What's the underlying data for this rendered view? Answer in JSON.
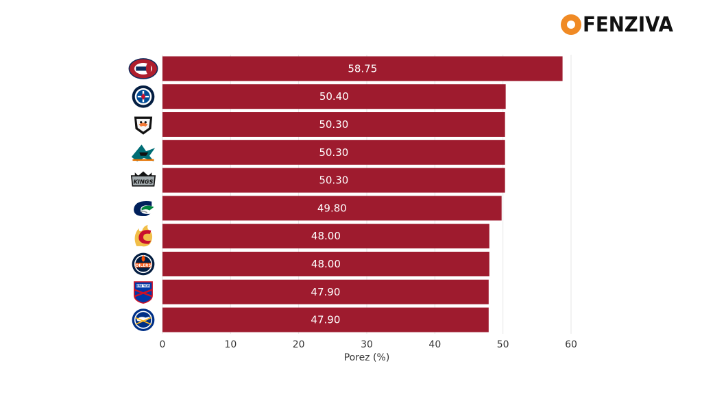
{
  "brand": {
    "text": "FENZIVA",
    "icon": "orange-ring-icon",
    "color": "#f08a24"
  },
  "chart_data": {
    "type": "bar",
    "orientation": "horizontal",
    "categories": [
      "montreal-canadiens-logo",
      "winnipeg-jets-logo",
      "anaheim-ducks-logo",
      "san-jose-sharks-logo",
      "los-angeles-kings-logo",
      "vancouver-canucks-logo",
      "calgary-flames-logo",
      "edmonton-oilers-logo",
      "new-york-rangers-logo",
      "buffalo-sabres-logo"
    ],
    "values": [
      58.75,
      50.4,
      50.3,
      50.3,
      50.3,
      49.8,
      48.0,
      48.0,
      47.9,
      47.9
    ],
    "value_labels": [
      "58.75",
      "50.40",
      "50.30",
      "50.30",
      "50.30",
      "49.80",
      "48.00",
      "48.00",
      "47.90",
      "47.90"
    ],
    "xlabel": "Porez (%)",
    "xlim": [
      0,
      60
    ],
    "xticks": [
      0,
      10,
      20,
      30,
      40,
      50,
      60
    ],
    "grid": "vertical",
    "bar_color": "#9e1b2e",
    "label_color": "#ffffff"
  }
}
